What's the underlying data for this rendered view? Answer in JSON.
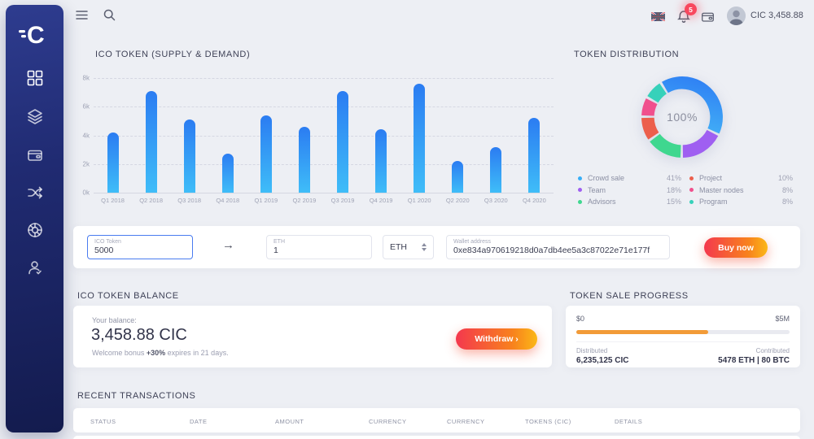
{
  "header": {
    "wallet_balance": "CIC 3,458.88",
    "notification_count": "5"
  },
  "sidebar": {
    "items": [
      {
        "icon": "dashboard-grid"
      },
      {
        "icon": "layers"
      },
      {
        "icon": "wallet"
      },
      {
        "icon": "exchange-shuffle"
      },
      {
        "icon": "distribution-wheel"
      },
      {
        "icon": "account-user"
      }
    ]
  },
  "supply_chart": {
    "type": "bar",
    "title": "ICO TOKEN (SUPPLY & DEMAND)",
    "categories": [
      "Q1 2018",
      "Q2 2018",
      "Q3 2018",
      "Q4 2018",
      "Q1 2019",
      "Q2 2019",
      "Q3 2019",
      "Q4 2019",
      "Q1 2020",
      "Q2 2020",
      "Q3 2020",
      "Q4 2020"
    ],
    "values": [
      4200,
      7100,
      5100,
      2700,
      5400,
      4600,
      7100,
      4400,
      7600,
      2200,
      3200,
      5200
    ],
    "ylim": [
      0,
      8000
    ],
    "yticks": [
      "8k",
      "6k",
      "4k",
      "2k",
      "0k"
    ],
    "bar_gradient": [
      "#2b7cf2",
      "#3fbdf8"
    ]
  },
  "token_distribution": {
    "type": "donut",
    "title": "TOKEN DISTRIBUTION",
    "center_label": "100%",
    "gradient": [
      "#4fd0f7",
      "#2d7bf4"
    ],
    "items": [
      {
        "label": "Crowd sale",
        "value": "41%",
        "pct": 41,
        "color": "#38aef7"
      },
      {
        "label": "Team",
        "value": "18%",
        "pct": 18,
        "color": "#9f5ff1"
      },
      {
        "label": "Advisors",
        "value": "15%",
        "pct": 15,
        "color": "#3fd78f"
      },
      {
        "label": "Project",
        "value": "10%",
        "pct": 10,
        "color": "#ec5f4c"
      },
      {
        "label": "Master nodes",
        "value": "8%",
        "pct": 8,
        "color": "#f0508d"
      },
      {
        "label": "Program",
        "value": "8%",
        "pct": 8,
        "color": "#36d1ba"
      }
    ]
  },
  "buy_panel": {
    "token_input": {
      "label": "ICO Token",
      "value": "5000"
    },
    "arrow": "→",
    "eth_input": {
      "label": "ETH",
      "value": "1"
    },
    "currency_select": {
      "value": "ETH"
    },
    "wallet_input": {
      "label": "Wallet address",
      "value": "0xe834a970619218d0a7db4ee5a3c87022e71e177f"
    },
    "buy_button": "Buy now"
  },
  "balance_section": {
    "title": "ICO TOKEN BALANCE",
    "balance_label": "Your balance:",
    "balance_value": "3,458.88 CIC",
    "bonus_prefix": "Welcome bonus ",
    "bonus_bold": "+30%",
    "bonus_suffix": " expires in 21 days.",
    "withdraw_button": "Withdraw ›"
  },
  "progress_section": {
    "title": "TOKEN SALE PROGRESS",
    "range_min": "$0",
    "range_max": "$5M",
    "percent": 62,
    "bar_color": "#f29b38",
    "distributed_label": "Distributed",
    "distributed_value": "6,235,125 CIC",
    "contributed_label": "Contributed",
    "contributed_value": "5478 ETH | 80 BTC"
  },
  "transactions": {
    "title": "RECENT TRANSACTIONS",
    "columns": [
      "STATUS",
      "DATE",
      "AMOUNT",
      "CURRENCY",
      "CURRENCY",
      "TOKENS (CIC)",
      "DETAILS"
    ]
  }
}
